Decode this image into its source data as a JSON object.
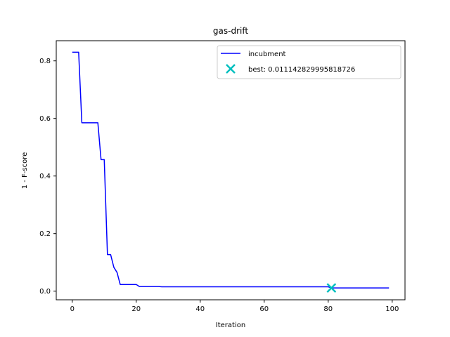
{
  "chart_data": {
    "type": "line",
    "title": "gas-drift",
    "xlabel": "Iteration",
    "ylabel": "1 - F-score",
    "xlim": [
      -5,
      104
    ],
    "ylim": [
      -0.03,
      0.87
    ],
    "xticks": [
      0,
      20,
      40,
      60,
      80,
      100
    ],
    "yticks": [
      0.0,
      0.2,
      0.4,
      0.6,
      0.8
    ],
    "xtick_labels": [
      "0",
      "20",
      "40",
      "60",
      "80",
      "100"
    ],
    "ytick_labels": [
      "0.0",
      "0.2",
      "0.4",
      "0.6",
      "0.8"
    ],
    "grid": false,
    "legend_position": "top-right",
    "series": [
      {
        "name": "incubment",
        "color": "#0000ff",
        "x": [
          0,
          1,
          2,
          3,
          4,
          5,
          6,
          7,
          8,
          9,
          10,
          11,
          12,
          13,
          14,
          15,
          16,
          17,
          18,
          19,
          20,
          21,
          22,
          23,
          24,
          25,
          26,
          27,
          28,
          29,
          30,
          40,
          50,
          60,
          70,
          80,
          81,
          82,
          90,
          99
        ],
        "y": [
          0.83,
          0.83,
          0.83,
          0.585,
          0.585,
          0.585,
          0.585,
          0.585,
          0.585,
          0.457,
          0.457,
          0.127,
          0.127,
          0.083,
          0.065,
          0.023,
          0.023,
          0.023,
          0.023,
          0.023,
          0.023,
          0.016,
          0.016,
          0.016,
          0.016,
          0.016,
          0.016,
          0.016,
          0.015,
          0.015,
          0.015,
          0.015,
          0.015,
          0.015,
          0.015,
          0.015,
          0.0111,
          0.0111,
          0.0111,
          0.0111
        ]
      }
    ],
    "markers": [
      {
        "name": "best: 0.011142829995818726",
        "color": "#00bfbf",
        "symbol": "x",
        "x": 81,
        "y": 0.011142829995818726
      }
    ]
  }
}
